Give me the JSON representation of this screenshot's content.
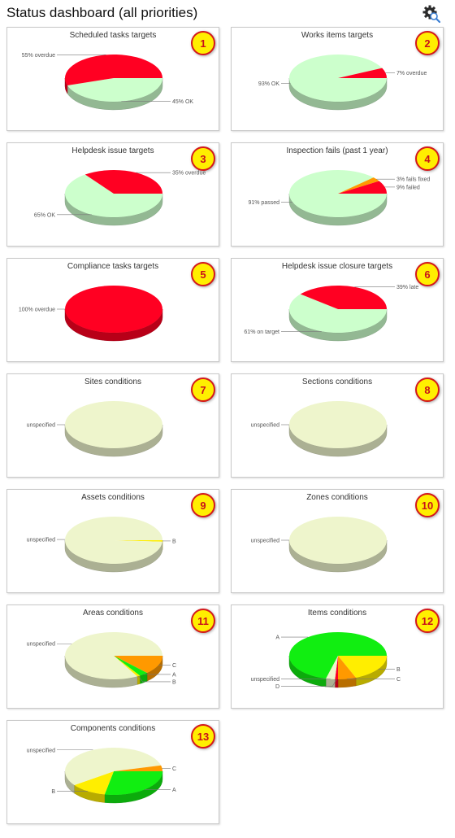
{
  "page": {
    "title": "Status dashboard (all priorities)",
    "settings_icon": "gear-search-icon"
  },
  "panels": [
    {
      "number": "1",
      "title": "Scheduled tasks targets",
      "slices": [
        {
          "label": "45% OK",
          "value": 45,
          "color": "#ccffcc"
        },
        {
          "label": "55% overdue",
          "value": 55,
          "color": "#ff0022"
        }
      ]
    },
    {
      "number": "2",
      "title": "Works items targets",
      "slices": [
        {
          "label": "93% OK",
          "value": 93,
          "color": "#ccffcc"
        },
        {
          "label": "7% overdue",
          "value": 7,
          "color": "#ff0022"
        }
      ]
    },
    {
      "number": "3",
      "title": "Helpdesk issue targets",
      "slices": [
        {
          "label": "65% OK",
          "value": 65,
          "color": "#ccffcc"
        },
        {
          "label": "35% overdue",
          "value": 35,
          "color": "#ff0022"
        }
      ]
    },
    {
      "number": "4",
      "title": "Inspection fails (past 1 year)",
      "slices": [
        {
          "label": "91% passed",
          "value": 88,
          "color": "#ccffcc"
        },
        {
          "label": "3% fails fixed",
          "value": 3,
          "color": "#ff9900"
        },
        {
          "label": "9% failed",
          "value": 9,
          "color": "#ff0022"
        }
      ]
    },
    {
      "number": "5",
      "title": "Compliance tasks targets",
      "slices": [
        {
          "label": "100% overdue",
          "value": 100,
          "color": "#ff0022"
        }
      ]
    },
    {
      "number": "6",
      "title": "Helpdesk issue closure targets",
      "slices": [
        {
          "label": "61% on target",
          "value": 61,
          "color": "#ccffcc"
        },
        {
          "label": "39% late",
          "value": 39,
          "color": "#ff0022"
        }
      ]
    },
    {
      "number": "7",
      "title": "Sites conditions",
      "slices": [
        {
          "label": "unspecified",
          "value": 100,
          "color": "#eef5cc"
        }
      ]
    },
    {
      "number": "8",
      "title": "Sections conditions",
      "slices": [
        {
          "label": "unspecified",
          "value": 100,
          "color": "#eef5cc"
        }
      ]
    },
    {
      "number": "9",
      "title": "Assets conditions",
      "slices": [
        {
          "label": "B",
          "value": 1,
          "color": "#ffee00"
        },
        {
          "label": "unspecified",
          "value": 99,
          "color": "#eef5cc"
        }
      ]
    },
    {
      "number": "10",
      "title": "Zones conditions",
      "slices": [
        {
          "label": "unspecified",
          "value": 100,
          "color": "#eef5cc"
        }
      ]
    },
    {
      "number": "11",
      "title": "Areas conditions",
      "slices": [
        {
          "label": "C",
          "value": 13,
          "color": "#ff9900"
        },
        {
          "label": "A",
          "value": 3,
          "color": "#11ee11"
        },
        {
          "label": "B",
          "value": 1,
          "color": "#ffee00"
        },
        {
          "label": "unspecified",
          "value": 83,
          "color": "#eef5cc"
        }
      ]
    },
    {
      "number": "12",
      "title": "Items conditions",
      "slices": [
        {
          "label": "B",
          "value": 19,
          "color": "#ffee00"
        },
        {
          "label": "C",
          "value": 6,
          "color": "#ff9900"
        },
        {
          "label": "D",
          "value": 1,
          "color": "#ff0022"
        },
        {
          "label": "unspecified",
          "value": 3,
          "color": "#eef5cc"
        },
        {
          "label": "A",
          "value": 71,
          "color": "#11ee11"
        }
      ]
    },
    {
      "number": "13",
      "title": "Components conditions",
      "slices": [
        {
          "label": "A",
          "value": 28,
          "color": "#11ee11"
        },
        {
          "label": "B",
          "value": 12,
          "color": "#ffee00"
        },
        {
          "label": "unspecified",
          "value": 56,
          "color": "#eef5cc"
        },
        {
          "label": "C",
          "value": 4,
          "color": "#ff9900"
        }
      ]
    }
  ]
}
